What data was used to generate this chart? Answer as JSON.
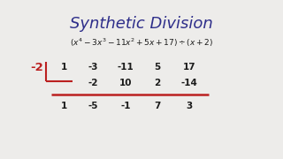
{
  "title": "Synthetic Division",
  "subtitle_math": "$(x^4 - 3x^3 - 11x^2 + 5x + 17) \\div (x + 2)$",
  "divisor": "-2",
  "row1": [
    "1",
    "-3",
    "-11",
    "5",
    "17"
  ],
  "row2": [
    "",
    "-2",
    "10",
    "2",
    "-14"
  ],
  "row3": [
    "1",
    "-5",
    "-1",
    "7",
    "3"
  ],
  "bg_color": "#edecea",
  "title_color": "#2e2e8a",
  "text_color": "#1a1a1a",
  "red_color": "#bb2020",
  "title_fontsize": 13,
  "subtitle_fontsize": 6.5,
  "table_fontsize": 7.5,
  "divisor_fontsize": 8.5
}
